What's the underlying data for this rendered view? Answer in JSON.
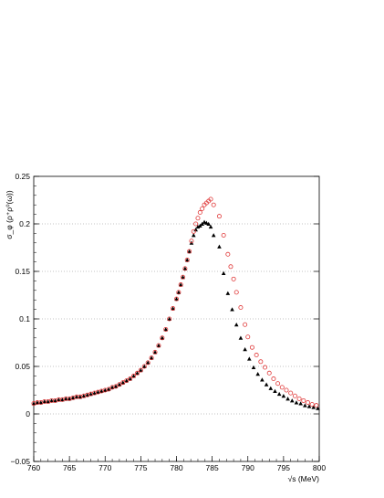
{
  "chart_data": {
    "type": "scatter",
    "title": "",
    "xlabel": "√s (MeV)",
    "ylabel": "σ_φ (ρ⁺ρ⁰(ω))",
    "xlim": [
      760,
      800
    ],
    "ylim": [
      -0.05,
      0.25
    ],
    "grid": "horizontal dotted at y ticks",
    "legend": "none",
    "x_ticks": [
      "760",
      "765",
      "770",
      "775",
      "780",
      "785",
      "790",
      "795",
      "800"
    ],
    "y_ticks": [
      "−0.05",
      "0",
      "0.05",
      "0.1",
      "0.15",
      "0.2",
      "0.25"
    ],
    "series": [
      {
        "marker": "filled-triangle",
        "color": "#000000",
        "x": [
          760.0,
          760.5,
          761.0,
          761.5,
          762.0,
          762.5,
          763.0,
          763.5,
          764.0,
          764.5,
          765.0,
          765.5,
          766.0,
          766.5,
          767.0,
          767.5,
          768.0,
          768.5,
          769.0,
          769.5,
          770.0,
          770.5,
          771.0,
          771.5,
          772.0,
          772.5,
          773.0,
          773.5,
          774.0,
          774.5,
          775.0,
          775.5,
          776.0,
          776.5,
          777.0,
          777.5,
          778.0,
          778.5,
          779.0,
          779.5,
          780.0,
          780.3,
          780.6,
          780.9,
          781.2,
          781.5,
          781.8,
          782.1,
          782.4,
          782.7,
          783.0,
          783.3,
          783.6,
          783.9,
          784.2,
          784.5,
          784.8,
          785.2,
          786.0,
          786.6,
          787.2,
          787.8,
          788.4,
          789.0,
          789.6,
          790.2,
          790.8,
          791.4,
          792.0,
          792.6,
          793.2,
          793.8,
          794.4,
          795.0,
          795.6,
          796.2,
          796.8,
          797.4,
          798.0,
          798.6,
          799.2,
          799.8
        ],
        "y": [
          0.011,
          0.012,
          0.012,
          0.013,
          0.013,
          0.014,
          0.014,
          0.015,
          0.015,
          0.016,
          0.016,
          0.017,
          0.018,
          0.018,
          0.019,
          0.02,
          0.021,
          0.022,
          0.023,
          0.024,
          0.025,
          0.026,
          0.028,
          0.029,
          0.031,
          0.033,
          0.035,
          0.037,
          0.04,
          0.043,
          0.046,
          0.05,
          0.054,
          0.059,
          0.065,
          0.072,
          0.08,
          0.089,
          0.1,
          0.111,
          0.121,
          0.128,
          0.136,
          0.144,
          0.153,
          0.162,
          0.171,
          0.18,
          0.188,
          0.194,
          0.197,
          0.198,
          0.2,
          0.202,
          0.201,
          0.2,
          0.197,
          0.188,
          0.176,
          0.148,
          0.127,
          0.11,
          0.094,
          0.08,
          0.068,
          0.058,
          0.049,
          0.042,
          0.036,
          0.031,
          0.027,
          0.024,
          0.021,
          0.019,
          0.016,
          0.014,
          0.012,
          0.011,
          0.009,
          0.008,
          0.007,
          0.006
        ]
      },
      {
        "marker": "open-circle",
        "color": "#e03a3a",
        "x": [
          760.0,
          760.5,
          761.0,
          761.5,
          762.0,
          762.5,
          763.0,
          763.5,
          764.0,
          764.5,
          765.0,
          765.5,
          766.0,
          766.5,
          767.0,
          767.5,
          768.0,
          768.5,
          769.0,
          769.5,
          770.0,
          770.5,
          771.0,
          771.5,
          772.0,
          772.5,
          773.0,
          773.5,
          774.0,
          774.5,
          775.0,
          775.5,
          776.0,
          776.5,
          777.0,
          777.5,
          778.0,
          778.5,
          779.0,
          779.5,
          780.0,
          780.3,
          780.6,
          780.9,
          781.2,
          781.5,
          781.8,
          782.1,
          782.4,
          782.7,
          783.0,
          783.3,
          783.6,
          783.9,
          784.2,
          784.5,
          784.8,
          785.2,
          786.0,
          786.6,
          787.2,
          787.6,
          788.0,
          788.4,
          789.0,
          789.6,
          790.0,
          790.6,
          791.2,
          791.8,
          792.4,
          793.0,
          793.6,
          794.2,
          794.8,
          795.4,
          796.0,
          796.6,
          797.2,
          797.8,
          798.4,
          799.0,
          799.6
        ],
        "y": [
          0.011,
          0.012,
          0.012,
          0.013,
          0.013,
          0.014,
          0.014,
          0.015,
          0.015,
          0.016,
          0.016,
          0.017,
          0.018,
          0.018,
          0.019,
          0.02,
          0.021,
          0.022,
          0.023,
          0.024,
          0.025,
          0.026,
          0.028,
          0.029,
          0.031,
          0.033,
          0.035,
          0.037,
          0.04,
          0.043,
          0.046,
          0.05,
          0.054,
          0.059,
          0.065,
          0.072,
          0.08,
          0.089,
          0.1,
          0.111,
          0.121,
          0.128,
          0.136,
          0.144,
          0.153,
          0.162,
          0.171,
          0.182,
          0.192,
          0.2,
          0.206,
          0.212,
          0.216,
          0.22,
          0.222,
          0.224,
          0.226,
          0.22,
          0.208,
          0.188,
          0.168,
          0.155,
          0.142,
          0.128,
          0.112,
          0.094,
          0.081,
          0.07,
          0.062,
          0.055,
          0.049,
          0.043,
          0.037,
          0.032,
          0.028,
          0.025,
          0.022,
          0.019,
          0.016,
          0.014,
          0.012,
          0.01,
          0.009
        ]
      }
    ]
  }
}
